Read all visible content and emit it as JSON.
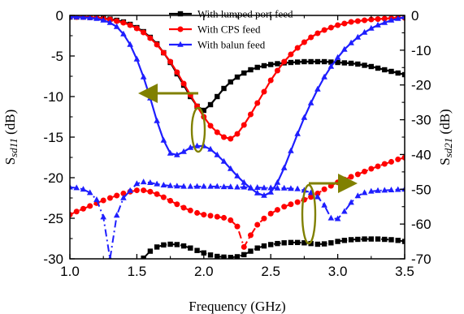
{
  "chart_data": {
    "type": "line",
    "xlabel": "Frequency (GHz)",
    "ylabel_left_main": "S",
    "ylabel_left_sub": "sd11",
    "ylabel_left_unit": " (dB)",
    "ylabel_right_main": "S",
    "ylabel_right_sub": "sd21",
    "ylabel_right_unit": " (dB)",
    "xlim": [
      1.0,
      3.5
    ],
    "ylim_left": [
      -30,
      0
    ],
    "ylim_right": [
      -70,
      0
    ],
    "x_ticks": [
      "1.0",
      "1.5",
      "2.0",
      "2.5",
      "3.0",
      "3.5"
    ],
    "y_left_ticks": [
      "0",
      "-5",
      "-10",
      "-15",
      "-20",
      "-25",
      "-30"
    ],
    "y_right_ticks": [
      "0",
      "-10",
      "-20",
      "-30",
      "-40",
      "-50",
      "-60",
      "-70"
    ],
    "grid": false,
    "legend_position": "top-right",
    "colors": {
      "lumped": "#000000",
      "cps": "#ff0000",
      "balun": "#1e1eff",
      "ellipse": "#808000"
    },
    "legend": [
      {
        "label": "With lumped port feed",
        "color": "#000000",
        "marker": "square"
      },
      {
        "label": "With CPS feed",
        "color": "#ff0000",
        "marker": "circle"
      },
      {
        "label": "With balun feed",
        "color": "#1e1eff",
        "marker": "triangle"
      }
    ],
    "series": [
      {
        "name": "With lumped port feed",
        "quantity": "Ssd11",
        "axis": "left",
        "style": "solid",
        "marker": "square",
        "color": "#000000",
        "x": [
          1.0,
          1.05,
          1.1,
          1.15,
          1.2,
          1.25,
          1.3,
          1.35,
          1.4,
          1.45,
          1.5,
          1.55,
          1.6,
          1.65,
          1.7,
          1.75,
          1.8,
          1.85,
          1.9,
          1.95,
          2.0,
          2.05,
          2.1,
          2.15,
          2.2,
          2.25,
          2.3,
          2.35,
          2.4,
          2.45,
          2.5,
          2.55,
          2.6,
          2.65,
          2.7,
          2.75,
          2.8,
          2.85,
          2.9,
          2.95,
          3.0,
          3.05,
          3.1,
          3.15,
          3.2,
          3.25,
          3.3,
          3.35,
          3.4,
          3.45,
          3.5
        ],
        "y": [
          -0.2,
          -0.2,
          -0.2,
          -0.25,
          -0.3,
          -0.35,
          -0.45,
          -0.6,
          -0.8,
          -1.1,
          -1.5,
          -2.0,
          -2.7,
          -3.5,
          -4.6,
          -5.8,
          -7.2,
          -8.6,
          -10.0,
          -11.2,
          -11.7,
          -11.0,
          -10.0,
          -9.0,
          -8.2,
          -7.6,
          -7.1,
          -6.7,
          -6.4,
          -6.2,
          -6.05,
          -5.95,
          -5.85,
          -5.8,
          -5.75,
          -5.7,
          -5.7,
          -5.7,
          -5.7,
          -5.75,
          -5.8,
          -5.85,
          -5.9,
          -6.0,
          -6.15,
          -6.3,
          -6.5,
          -6.7,
          -6.9,
          -7.1,
          -7.3
        ]
      },
      {
        "name": "With CPS feed",
        "quantity": "Ssd11",
        "axis": "left",
        "style": "solid",
        "marker": "circle",
        "color": "#ff0000",
        "x": [
          1.0,
          1.05,
          1.1,
          1.15,
          1.2,
          1.25,
          1.3,
          1.35,
          1.4,
          1.45,
          1.5,
          1.55,
          1.6,
          1.65,
          1.7,
          1.75,
          1.8,
          1.85,
          1.9,
          1.95,
          2.0,
          2.05,
          2.1,
          2.15,
          2.2,
          2.25,
          2.3,
          2.35,
          2.4,
          2.45,
          2.5,
          2.55,
          2.6,
          2.65,
          2.7,
          2.75,
          2.8,
          2.85,
          2.9,
          2.95,
          3.0,
          3.05,
          3.1,
          3.15,
          3.2,
          3.25,
          3.3,
          3.35,
          3.4,
          3.45,
          3.5
        ],
        "y": [
          -0.2,
          -0.2,
          -0.2,
          -0.25,
          -0.3,
          -0.4,
          -0.5,
          -0.7,
          -0.9,
          -1.2,
          -1.6,
          -2.1,
          -2.8,
          -3.6,
          -4.6,
          -5.7,
          -7.0,
          -8.4,
          -9.8,
          -11.2,
          -12.5,
          -13.6,
          -14.4,
          -15.0,
          -15.2,
          -14.6,
          -13.5,
          -12.2,
          -10.8,
          -9.4,
          -8.0,
          -6.8,
          -5.7,
          -4.8,
          -4.0,
          -3.3,
          -2.7,
          -2.2,
          -1.8,
          -1.5,
          -1.2,
          -1.0,
          -0.8,
          -0.7,
          -0.6,
          -0.5,
          -0.45,
          -0.4,
          -0.35,
          -0.3,
          -0.3
        ]
      },
      {
        "name": "With balun feed",
        "quantity": "Ssd11",
        "axis": "left",
        "style": "solid",
        "marker": "triangle",
        "color": "#1e1eff",
        "x": [
          1.0,
          1.05,
          1.1,
          1.15,
          1.2,
          1.25,
          1.3,
          1.35,
          1.4,
          1.45,
          1.5,
          1.55,
          1.6,
          1.65,
          1.7,
          1.75,
          1.8,
          1.85,
          1.9,
          1.95,
          2.0,
          2.05,
          2.1,
          2.15,
          2.2,
          2.25,
          2.3,
          2.35,
          2.4,
          2.45,
          2.5,
          2.55,
          2.6,
          2.65,
          2.7,
          2.75,
          2.8,
          2.85,
          2.9,
          2.95,
          3.0,
          3.05,
          3.1,
          3.15,
          3.2,
          3.25,
          3.3,
          3.35,
          3.4,
          3.45,
          3.5
        ],
        "y": [
          -0.2,
          -0.2,
          -0.25,
          -0.3,
          -0.4,
          -0.6,
          -0.9,
          -1.4,
          -2.3,
          -3.6,
          -5.4,
          -7.6,
          -10.2,
          -13.0,
          -15.4,
          -17.0,
          -17.2,
          -16.8,
          -16.3,
          -16.1,
          -16.1,
          -16.5,
          -17.2,
          -18.0,
          -18.9,
          -19.8,
          -20.6,
          -21.3,
          -21.9,
          -22.2,
          -21.8,
          -20.6,
          -18.8,
          -16.7,
          -14.6,
          -12.6,
          -10.8,
          -9.1,
          -7.6,
          -6.3,
          -5.2,
          -4.2,
          -3.4,
          -2.7,
          -2.1,
          -1.6,
          -1.2,
          -0.9,
          -0.6,
          -0.4,
          -0.2
        ]
      },
      {
        "name": "With lumped port feed",
        "quantity": "Ssd21",
        "axis": "right",
        "style": "dashdot",
        "marker": "square",
        "color": "#000000",
        "x": [
          1.55,
          1.6,
          1.65,
          1.7,
          1.75,
          1.8,
          1.85,
          1.9,
          1.95,
          2.0,
          2.05,
          2.1,
          2.15,
          2.2,
          2.25,
          2.3,
          2.35,
          2.4,
          2.45,
          2.5,
          2.55,
          2.6,
          2.65,
          2.7,
          2.75,
          2.8,
          2.85,
          2.9,
          2.95,
          3.0,
          3.05,
          3.1,
          3.15,
          3.2,
          3.25,
          3.3,
          3.35,
          3.4,
          3.45,
          3.5
        ],
        "y": [
          -69.8,
          -67.8,
          -66.6,
          -66.0,
          -65.8,
          -65.9,
          -66.3,
          -66.9,
          -67.6,
          -68.3,
          -68.9,
          -69.3,
          -69.5,
          -69.6,
          -69.4,
          -68.8,
          -67.8,
          -66.9,
          -66.3,
          -65.9,
          -65.6,
          -65.4,
          -65.3,
          -65.3,
          -65.4,
          -65.6,
          -65.8,
          -65.7,
          -65.4,
          -65.0,
          -64.7,
          -64.5,
          -64.4,
          -64.3,
          -64.3,
          -64.3,
          -64.4,
          -64.5,
          -64.7,
          -65.0
        ]
      },
      {
        "name": "With CPS feed",
        "quantity": "Ssd21",
        "axis": "right",
        "style": "dashdot",
        "marker": "circle",
        "color": "#ff0000",
        "x": [
          1.0,
          1.05,
          1.1,
          1.15,
          1.2,
          1.25,
          1.3,
          1.35,
          1.4,
          1.45,
          1.5,
          1.55,
          1.6,
          1.65,
          1.7,
          1.75,
          1.8,
          1.85,
          1.9,
          1.95,
          2.0,
          2.05,
          2.1,
          2.15,
          2.2,
          2.25,
          2.3,
          2.35,
          2.4,
          2.45,
          2.5,
          2.55,
          2.6,
          2.65,
          2.7,
          2.75,
          2.8,
          2.85,
          2.9,
          2.95,
          3.0,
          3.05,
          3.1,
          3.15,
          3.2,
          3.25,
          3.3,
          3.35,
          3.4,
          3.45,
          3.5
        ],
        "y": [
          -57.3,
          -56.4,
          -55.6,
          -54.8,
          -54.0,
          -53.2,
          -52.5,
          -51.8,
          -51.2,
          -50.7,
          -50.3,
          -50.3,
          -50.7,
          -51.4,
          -52.3,
          -53.3,
          -54.3,
          -55.3,
          -56.1,
          -56.8,
          -57.3,
          -57.6,
          -57.9,
          -58.2,
          -58.9,
          -60.7,
          -66.6,
          -63.2,
          -60.2,
          -58.4,
          -57.0,
          -55.9,
          -55.0,
          -54.3,
          -53.7,
          -53.0,
          -52.2,
          -51.2,
          -50.0,
          -49.0,
          -48.0,
          -47.2,
          -46.4,
          -45.7,
          -44.9,
          -44.1,
          -43.4,
          -42.7,
          -42.1,
          -41.4,
          -40.9
        ]
      },
      {
        "name": "With balun feed",
        "quantity": "Ssd21",
        "axis": "right",
        "style": "dashdot",
        "marker": "triangle",
        "color": "#1e1eff",
        "x": [
          1.0,
          1.05,
          1.1,
          1.15,
          1.2,
          1.25,
          1.3,
          1.35,
          1.4,
          1.45,
          1.5,
          1.55,
          1.6,
          1.65,
          1.7,
          1.75,
          1.8,
          1.85,
          1.9,
          1.95,
          2.0,
          2.05,
          2.1,
          2.15,
          2.2,
          2.25,
          2.3,
          2.35,
          2.4,
          2.45,
          2.5,
          2.55,
          2.6,
          2.65,
          2.7,
          2.75,
          2.8,
          2.85,
          2.9,
          2.95,
          3.0,
          3.05,
          3.1,
          3.15,
          3.2,
          3.25,
          3.3,
          3.35,
          3.4,
          3.45,
          3.5
        ],
        "y": [
          -49.4,
          -49.6,
          -50.0,
          -51.0,
          -53.0,
          -58.0,
          -70.0,
          -57.5,
          -52.5,
          -50.4,
          -48.4,
          -47.9,
          -48.1,
          -48.5,
          -48.8,
          -49.0,
          -49.1,
          -49.2,
          -49.2,
          -49.2,
          -49.2,
          -49.2,
          -49.2,
          -49.3,
          -49.3,
          -49.4,
          -49.4,
          -49.5,
          -49.5,
          -49.6,
          -49.6,
          -49.7,
          -49.7,
          -49.8,
          -49.9,
          -50.3,
          -51.0,
          -52.2,
          -54.6,
          -58.3,
          -58.5,
          -56.4,
          -53.8,
          -51.9,
          -51.0,
          -50.6,
          -50.4,
          -50.3,
          -50.2,
          -50.1,
          -50.0
        ]
      }
    ]
  }
}
